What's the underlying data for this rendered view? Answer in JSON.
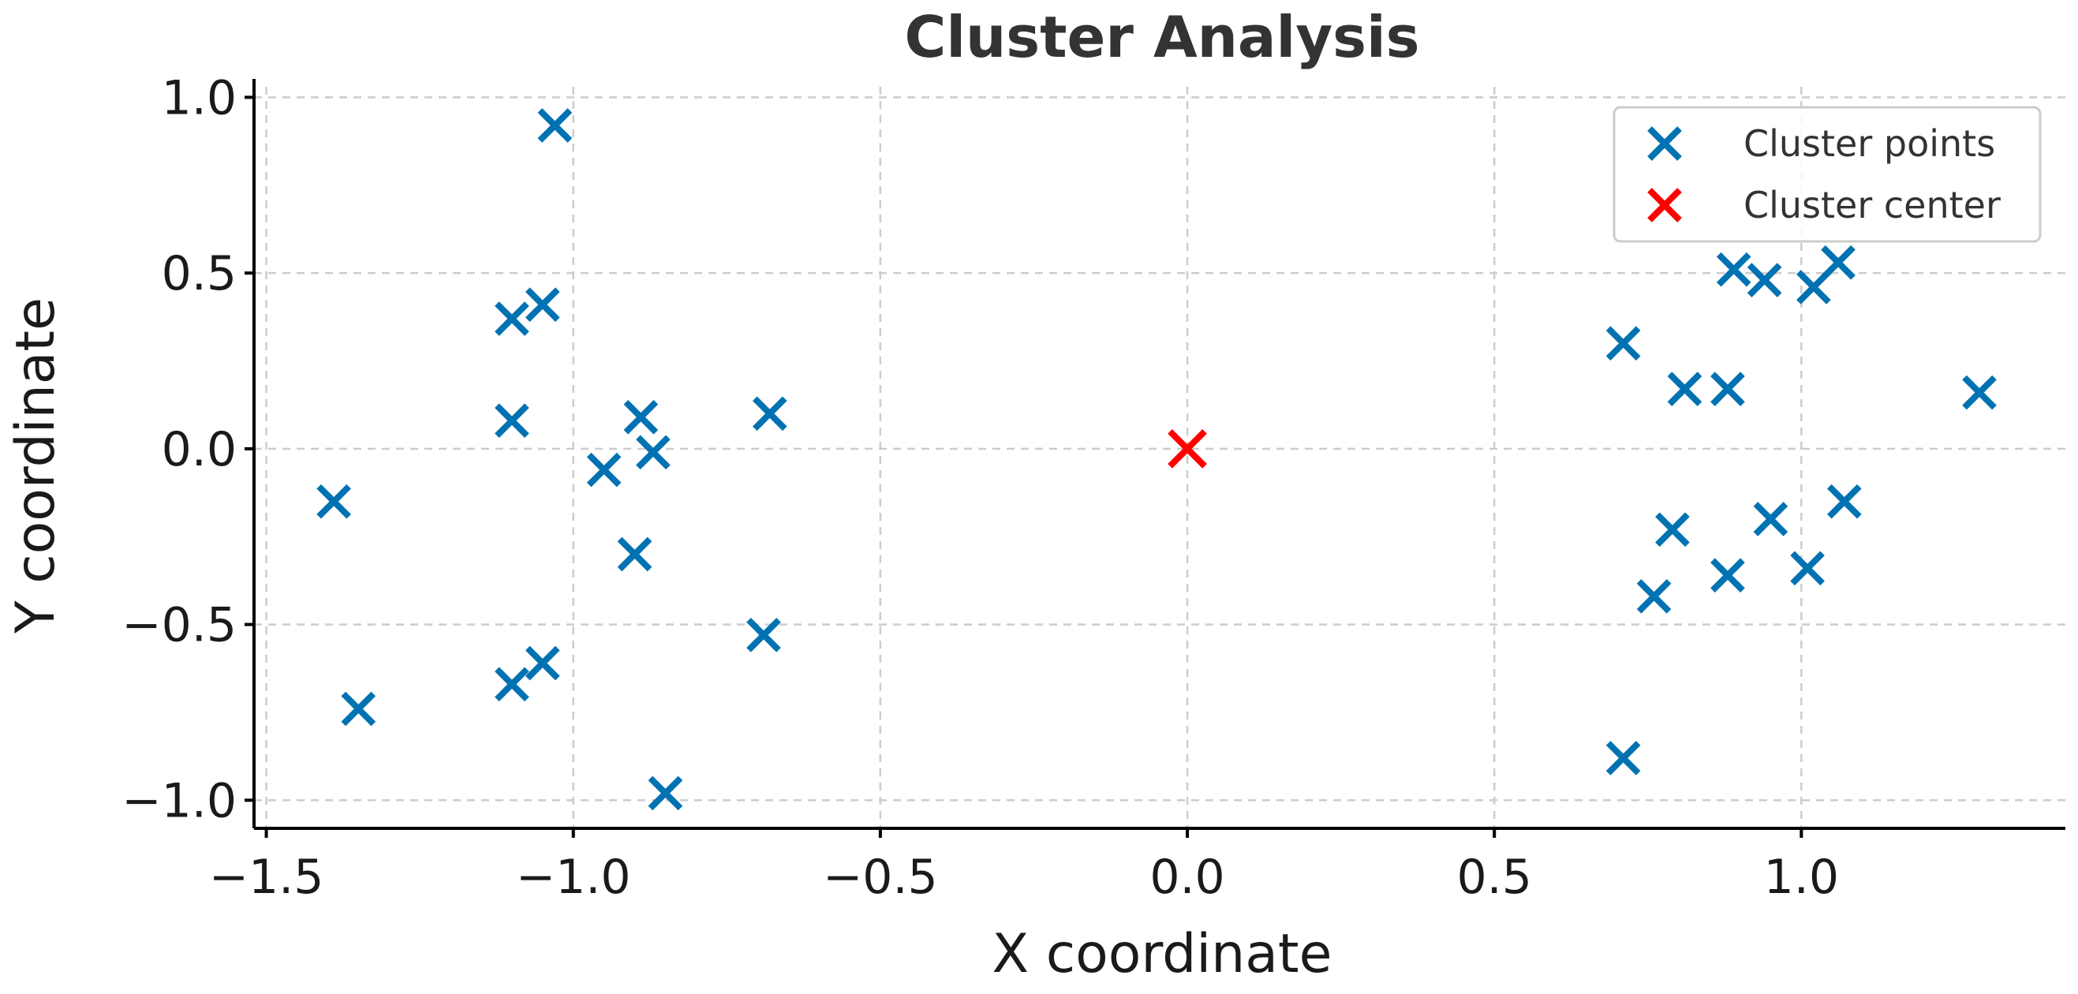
{
  "chart_data": {
    "type": "scatter",
    "title": "Cluster Analysis",
    "xlabel": "X coordinate",
    "ylabel": "Y coordinate",
    "xlim": [
      -1.52,
      1.43
    ],
    "ylim": [
      -1.08,
      1.03
    ],
    "x_ticks": [
      {
        "value": -1.5,
        "label": "−1.5"
      },
      {
        "value": -1.0,
        "label": "−1.0"
      },
      {
        "value": -0.5,
        "label": "−0.5"
      },
      {
        "value": 0.0,
        "label": "0.0"
      },
      {
        "value": 0.5,
        "label": "0.5"
      },
      {
        "value": 1.0,
        "label": "1.0"
      }
    ],
    "y_ticks": [
      {
        "value": 1.0,
        "label": "1.0"
      },
      {
        "value": 0.5,
        "label": "0.5"
      },
      {
        "value": 0.0,
        "label": "0.0"
      },
      {
        "value": -0.5,
        "label": "−0.5"
      },
      {
        "value": -1.0,
        "label": "−1.0"
      }
    ],
    "grid": true,
    "legend_position": "top-right",
    "series": [
      {
        "name": "Cluster points",
        "marker": "x",
        "color": "#0072B2",
        "points": [
          {
            "x": -1.03,
            "y": 0.92
          },
          {
            "x": -1.05,
            "y": 0.41
          },
          {
            "x": -1.1,
            "y": 0.37
          },
          {
            "x": -1.1,
            "y": 0.08
          },
          {
            "x": -0.89,
            "y": 0.09
          },
          {
            "x": -0.87,
            "y": -0.01
          },
          {
            "x": -0.95,
            "y": -0.06
          },
          {
            "x": -0.68,
            "y": 0.1
          },
          {
            "x": -1.39,
            "y": -0.15
          },
          {
            "x": -0.9,
            "y": -0.3
          },
          {
            "x": -0.69,
            "y": -0.53
          },
          {
            "x": -1.05,
            "y": -0.61
          },
          {
            "x": -1.1,
            "y": -0.67
          },
          {
            "x": -1.35,
            "y": -0.74
          },
          {
            "x": -0.85,
            "y": -0.98
          },
          {
            "x": 0.71,
            "y": 0.3
          },
          {
            "x": 0.89,
            "y": 0.51
          },
          {
            "x": 0.94,
            "y": 0.48
          },
          {
            "x": 1.02,
            "y": 0.46
          },
          {
            "x": 1.06,
            "y": 0.53
          },
          {
            "x": 0.81,
            "y": 0.17
          },
          {
            "x": 0.88,
            "y": 0.17
          },
          {
            "x": 1.29,
            "y": 0.16
          },
          {
            "x": 0.79,
            "y": -0.23
          },
          {
            "x": 0.95,
            "y": -0.2
          },
          {
            "x": 1.07,
            "y": -0.15
          },
          {
            "x": 0.76,
            "y": -0.42
          },
          {
            "x": 0.88,
            "y": -0.36
          },
          {
            "x": 1.01,
            "y": -0.34
          },
          {
            "x": 0.71,
            "y": -0.88
          }
        ]
      },
      {
        "name": "Cluster center",
        "marker": "x",
        "color": "#FF0000",
        "points": [
          {
            "x": 0.0,
            "y": 0.0
          }
        ]
      }
    ]
  }
}
